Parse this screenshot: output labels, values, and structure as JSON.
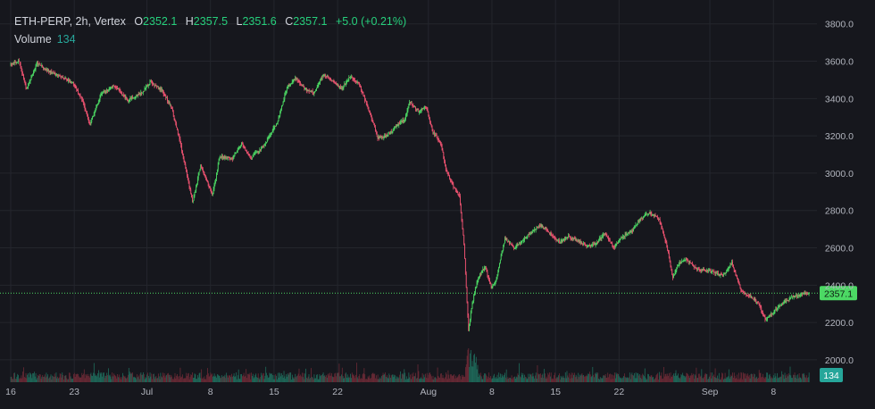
{
  "legend": {
    "symbol": "ETH-PERP, 2h, Vertex",
    "open_label": "O",
    "open": "2352.1",
    "high_label": "H",
    "high": "2357.5",
    "low_label": "L",
    "low": "2351.6",
    "close_label": "C",
    "close": "2357.1",
    "change": "+5.0 (+0.21%)",
    "volume_label": "Volume",
    "volume": "134"
  },
  "colors": {
    "background": "#16171d",
    "up": "#4cd964",
    "down": "#ef5371",
    "grid": "#24262d",
    "price_line": "#4cd964",
    "volume_up": "#1f6b5b",
    "volume_down": "#6b2a36",
    "volume_badge": "#26a69a"
  },
  "chart_data": {
    "type": "candlestick",
    "price_axis": {
      "ticks": [
        "3800.0",
        "3600.0",
        "3400.0",
        "3200.0",
        "3000.0",
        "2800.0",
        "2600.0",
        "2400.0",
        "2200.0",
        "2000.0"
      ],
      "values": [
        3800,
        3600,
        3400,
        3200,
        3000,
        2800,
        2600,
        2400,
        2200,
        2000
      ],
      "range": [
        1880,
        3880
      ]
    },
    "time_axis": {
      "labels": [
        "16",
        "23",
        "Jul",
        "8",
        "15",
        "22",
        "Aug",
        "8",
        "15",
        "22",
        "Sep",
        "8"
      ],
      "day_index": [
        0,
        7,
        15,
        22,
        29,
        36,
        46,
        53,
        60,
        67,
        77,
        84
      ],
      "range_days": [
        0,
        88.5
      ]
    },
    "last_price": "2357.1",
    "last_volume": "134",
    "price_path": [
      [
        0,
        3580
      ],
      [
        1.0,
        3600
      ],
      [
        1.8,
        3450
      ],
      [
        3,
        3590
      ],
      [
        4.5,
        3540
      ],
      [
        6,
        3510
      ],
      [
        7,
        3480
      ],
      [
        8,
        3390
      ],
      [
        8.8,
        3260
      ],
      [
        10,
        3420
      ],
      [
        11.5,
        3470
      ],
      [
        13,
        3390
      ],
      [
        14.5,
        3430
      ],
      [
        15.5,
        3490
      ],
      [
        16.8,
        3440
      ],
      [
        17.8,
        3350
      ],
      [
        18.8,
        3150
      ],
      [
        19.5,
        2990
      ],
      [
        20.1,
        2840
      ],
      [
        21,
        3040
      ],
      [
        22.3,
        2880
      ],
      [
        23.1,
        3090
      ],
      [
        24.5,
        3080
      ],
      [
        25.5,
        3160
      ],
      [
        26.5,
        3080
      ],
      [
        28,
        3150
      ],
      [
        29.5,
        3280
      ],
      [
        30.5,
        3460
      ],
      [
        31.5,
        3510
      ],
      [
        32.5,
        3450
      ],
      [
        33.5,
        3430
      ],
      [
        34.5,
        3530
      ],
      [
        35.5,
        3500
      ],
      [
        36.5,
        3450
      ],
      [
        37.5,
        3520
      ],
      [
        38.5,
        3470
      ],
      [
        39.5,
        3340
      ],
      [
        40.5,
        3190
      ],
      [
        41.5,
        3200
      ],
      [
        42.5,
        3250
      ],
      [
        43.5,
        3290
      ],
      [
        44,
        3380
      ],
      [
        45,
        3330
      ],
      [
        45.8,
        3360
      ],
      [
        46.5,
        3230
      ],
      [
        47.5,
        3150
      ],
      [
        48,
        3020
      ],
      [
        48.8,
        2930
      ],
      [
        49.5,
        2880
      ],
      [
        50,
        2620
      ],
      [
        50.5,
        2160
      ],
      [
        50.9,
        2300
      ],
      [
        51.5,
        2430
      ],
      [
        52.3,
        2500
      ],
      [
        53,
        2390
      ],
      [
        53.5,
        2420
      ],
      [
        54.5,
        2650
      ],
      [
        55.5,
        2600
      ],
      [
        56.5,
        2640
      ],
      [
        57.5,
        2690
      ],
      [
        58.5,
        2720
      ],
      [
        59.5,
        2680
      ],
      [
        60.5,
        2630
      ],
      [
        61.5,
        2660
      ],
      [
        62.5,
        2640
      ],
      [
        63.5,
        2610
      ],
      [
        64.5,
        2620
      ],
      [
        65.5,
        2680
      ],
      [
        66.5,
        2600
      ],
      [
        67.5,
        2660
      ],
      [
        68.5,
        2690
      ],
      [
        69.5,
        2760
      ],
      [
        70.5,
        2790
      ],
      [
        71.5,
        2750
      ],
      [
        72.3,
        2620
      ],
      [
        73,
        2440
      ],
      [
        73.7,
        2520
      ],
      [
        74.5,
        2540
      ],
      [
        75.5,
        2490
      ],
      [
        76.5,
        2480
      ],
      [
        77.5,
        2470
      ],
      [
        78.5,
        2450
      ],
      [
        79.5,
        2520
      ],
      [
        80.5,
        2370
      ],
      [
        81.5,
        2340
      ],
      [
        82.5,
        2300
      ],
      [
        83.2,
        2210
      ],
      [
        84,
        2250
      ],
      [
        85,
        2300
      ],
      [
        86,
        2330
      ],
      [
        87,
        2350
      ],
      [
        88,
        2357
      ]
    ]
  }
}
